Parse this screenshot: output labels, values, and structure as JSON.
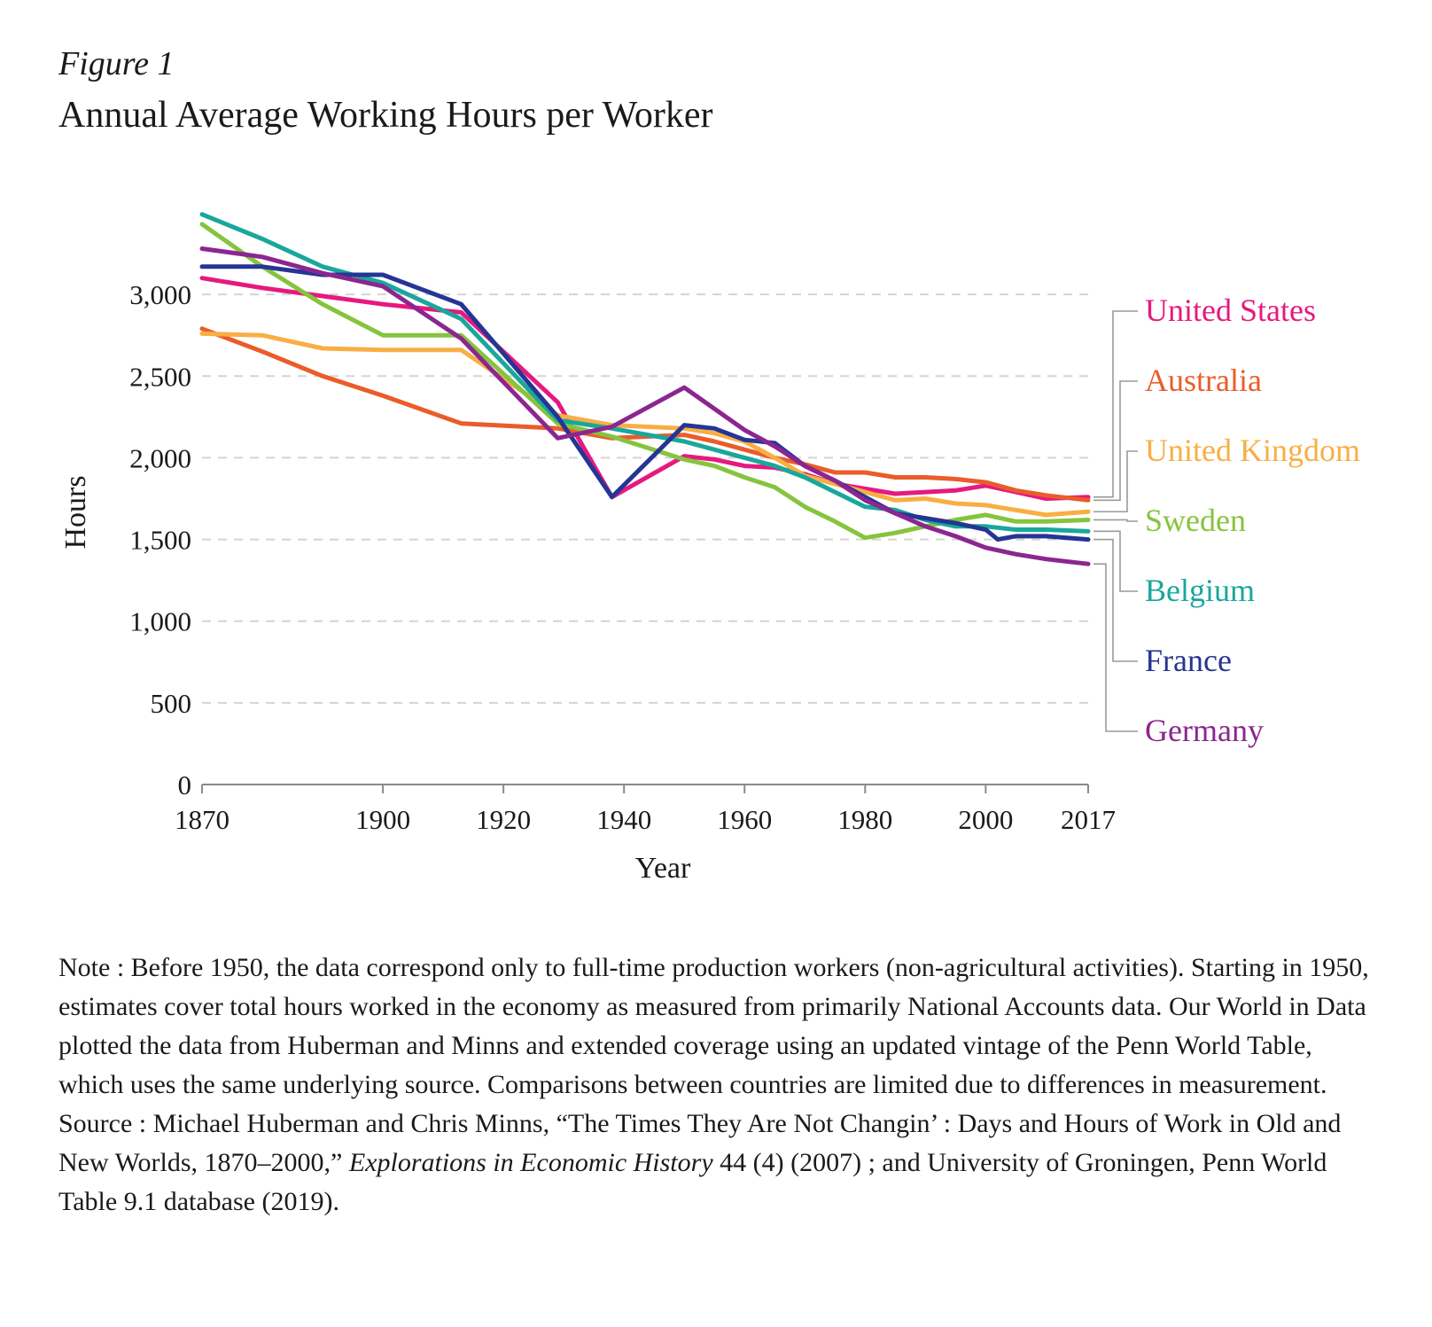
{
  "figure": {
    "label": "Figure 1",
    "title": "Annual Average Working Hours per Worker"
  },
  "note": {
    "text_1": "Note : Before 1950, the data correspond only to full-time production workers (non-agricultural activities). Starting in 1950, estimates cover total hours worked in the economy as measured from primarily National Accounts data. Our World in Data plotted the data from Huberman and Minns and extended coverage using an updated vintage of the Penn World Table, which uses the same underlying source. Comparisons between countries are limited due to differences in measurement. Source : Michael Huberman and Chris Minns, “The Times They Are Not Changin’ : Days and Hours of Work in Old and New Worlds, 1870–2000,” ",
    "journal": "Explorations in Economic History",
    "text_2": " 44 (4) (2007) ; and University of Groningen, Penn World Table 9.1 database (2019)."
  },
  "chart_data": {
    "type": "line",
    "xlabel": "Year",
    "ylabel": "Hours",
    "xlim": [
      1870,
      2017
    ],
    "ylim": [
      0,
      3500
    ],
    "xticks": [
      1870,
      1900,
      1920,
      1940,
      1960,
      1980,
      2000,
      2017
    ],
    "xtick_labels": [
      "1870",
      "1900",
      "1920",
      "1940",
      "1960",
      "1980",
      "2000",
      "2017"
    ],
    "yticks": [
      0,
      500,
      1000,
      1500,
      2000,
      2500,
      3000
    ],
    "ytick_labels": [
      "0",
      "500",
      "1,000",
      "1,500",
      "2,000",
      "2,500",
      "3,000"
    ],
    "grid": "horizontal dashed",
    "legend": "right, labels at line ends",
    "series": [
      {
        "name": "United States",
        "color": "#e6197f",
        "x": [
          1870,
          1880,
          1890,
          1900,
          1913,
          1929,
          1938,
          1950,
          1955,
          1960,
          1965,
          1970,
          1975,
          1980,
          1985,
          1990,
          1995,
          2000,
          2005,
          2010,
          2017
        ],
        "y": [
          3100,
          3040,
          2990,
          2940,
          2890,
          2340,
          1760,
          2010,
          1990,
          1950,
          1940,
          1900,
          1840,
          1810,
          1780,
          1790,
          1800,
          1830,
          1790,
          1750,
          1760
        ]
      },
      {
        "name": "Australia",
        "color": "#ea5c2a",
        "x": [
          1870,
          1880,
          1890,
          1900,
          1913,
          1929,
          1938,
          1950,
          1955,
          1960,
          1965,
          1970,
          1975,
          1980,
          1985,
          1990,
          1995,
          2000,
          2005,
          2010,
          2017
        ],
        "y": [
          2790,
          2650,
          2500,
          2380,
          2210,
          2180,
          2120,
          2140,
          2100,
          2050,
          2000,
          1960,
          1910,
          1910,
          1880,
          1880,
          1870,
          1850,
          1800,
          1770,
          1740
        ]
      },
      {
        "name": "United Kingdom",
        "color": "#f9ae44",
        "x": [
          1870,
          1880,
          1890,
          1900,
          1913,
          1929,
          1938,
          1950,
          1955,
          1960,
          1965,
          1970,
          1975,
          1980,
          1985,
          1990,
          1995,
          2000,
          2005,
          2010,
          2017
        ],
        "y": [
          2760,
          2750,
          2670,
          2660,
          2660,
          2260,
          2200,
          2180,
          2150,
          2100,
          2000,
          1890,
          1840,
          1790,
          1740,
          1750,
          1720,
          1710,
          1680,
          1650,
          1670
        ]
      },
      {
        "name": "Sweden",
        "color": "#86c43d",
        "x": [
          1870,
          1880,
          1890,
          1900,
          1913,
          1929,
          1938,
          1950,
          1955,
          1960,
          1965,
          1970,
          1975,
          1980,
          1985,
          1990,
          1995,
          2000,
          2005,
          2010,
          2017
        ],
        "y": [
          3430,
          3170,
          2940,
          2750,
          2750,
          2210,
          2130,
          1990,
          1950,
          1880,
          1820,
          1700,
          1610,
          1510,
          1540,
          1580,
          1620,
          1650,
          1610,
          1610,
          1620
        ]
      },
      {
        "name": "Belgium",
        "color": "#19a79c",
        "x": [
          1870,
          1880,
          1890,
          1900,
          1913,
          1929,
          1938,
          1950,
          1955,
          1960,
          1965,
          1970,
          1975,
          1980,
          1985,
          1990,
          1995,
          2000,
          2005,
          2010,
          2017
        ],
        "y": [
          3490,
          3340,
          3170,
          3070,
          2850,
          2230,
          2180,
          2100,
          2050,
          2000,
          1950,
          1880,
          1790,
          1700,
          1680,
          1620,
          1580,
          1580,
          1560,
          1560,
          1550
        ]
      },
      {
        "name": "France",
        "color": "#253594",
        "x": [
          1870,
          1880,
          1890,
          1900,
          1913,
          1929,
          1938,
          1950,
          1955,
          1960,
          1965,
          1970,
          1975,
          1980,
          1985,
          1990,
          1995,
          2000,
          2002,
          2005,
          2010,
          2017
        ],
        "y": [
          3170,
          3170,
          3120,
          3120,
          2940,
          2250,
          1760,
          2200,
          2180,
          2110,
          2090,
          1950,
          1860,
          1760,
          1660,
          1630,
          1600,
          1560,
          1500,
          1520,
          1520,
          1500
        ]
      },
      {
        "name": "Germany",
        "color": "#8b2690",
        "x": [
          1870,
          1880,
          1890,
          1900,
          1913,
          1929,
          1938,
          1950,
          1960,
          1965,
          1970,
          1975,
          1980,
          1985,
          1990,
          1995,
          2000,
          2005,
          2010,
          2017
        ],
        "y": [
          3280,
          3230,
          3130,
          3050,
          2730,
          2120,
          2190,
          2430,
          2170,
          2070,
          1950,
          1860,
          1740,
          1660,
          1580,
          1520,
          1450,
          1410,
          1380,
          1350
        ]
      }
    ]
  }
}
